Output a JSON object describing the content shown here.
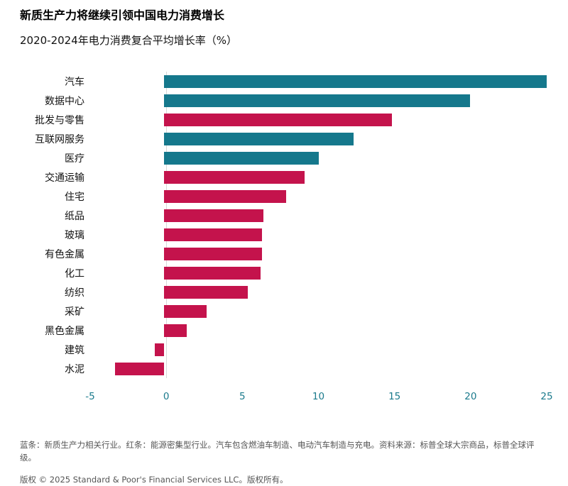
{
  "header": {
    "title": "新质生产力将继续引领中国电力消费增长",
    "subtitle": "2020-2024年电力消费复合平均增长率（%）"
  },
  "colors": {
    "teal": "#15788C",
    "red": "#C4134C",
    "tick_label": "#1A7A8C",
    "footnote_text": "#555555"
  },
  "chart_data": {
    "type": "bar",
    "orientation": "horizontal",
    "title": "新质生产力将继续引领中国电力消费增长",
    "subtitle": "2020-2024年电力消费复合平均增长率（%）",
    "xlabel": "",
    "ylabel": "",
    "xlim": [
      -5,
      25
    ],
    "xticks": [
      -5,
      0,
      5,
      10,
      15,
      20,
      25
    ],
    "grid": false,
    "legend_note": "蓝条 = 新质生产力相关行业；红条 = 能源密集型行业",
    "categories": [
      "汽车",
      "数据中心",
      "批发与零售",
      "互联网服务",
      "医疗",
      "交通运输",
      "住宅",
      "纸品",
      "玻璃",
      "有色金属",
      "化工",
      "纺织",
      "采矿",
      "黑色金属",
      "建筑",
      "水泥"
    ],
    "values": [
      25.0,
      20.0,
      14.9,
      12.4,
      10.1,
      9.2,
      8.0,
      6.5,
      6.4,
      6.4,
      6.3,
      5.5,
      2.8,
      1.5,
      -0.6,
      -3.2
    ],
    "bar_color_keys": [
      "teal",
      "teal",
      "red",
      "teal",
      "teal",
      "red",
      "red",
      "red",
      "red",
      "red",
      "red",
      "red",
      "red",
      "red",
      "red",
      "red"
    ]
  },
  "footnotes": {
    "note": "蓝条：新质生产力相关行业。红条：能源密集型行业。汽车包含燃油车制造、电动汽车制造与充电。资料来源：标普全球大宗商品，标普全球评级。",
    "copyright": "版权 © 2025 Standard & Poor's Financial Services LLC。版权所有。"
  }
}
